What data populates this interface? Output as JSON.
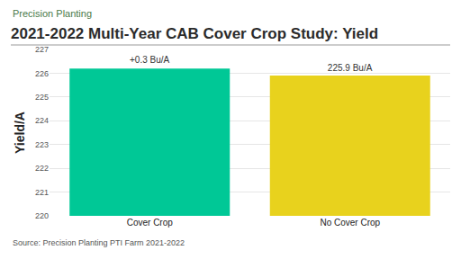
{
  "chart_data": {
    "type": "bar",
    "logo": "Precision Planting",
    "title": "2021-2022 Multi-Year CAB Cover Crop Study: Yield",
    "y_label": "Yield/A",
    "source": "Source: Precision Planting PTI Farm 2021-2022",
    "categories": [
      "Cover Crop",
      "No Cover Crop"
    ],
    "values": [
      226.2,
      225.9
    ],
    "colors": [
      "#00c896",
      "#e8d21d"
    ],
    "data_labels": true,
    "value_labels": [
      null,
      "225.9 Bu/A"
    ],
    "annotations": [
      {
        "text": "+0.3 Bu/A",
        "category": "Cover Crop"
      }
    ],
    "ylim": [
      220,
      227
    ],
    "yticks": [
      220,
      221,
      222,
      223,
      224,
      225,
      226,
      227
    ],
    "grid": true
  }
}
